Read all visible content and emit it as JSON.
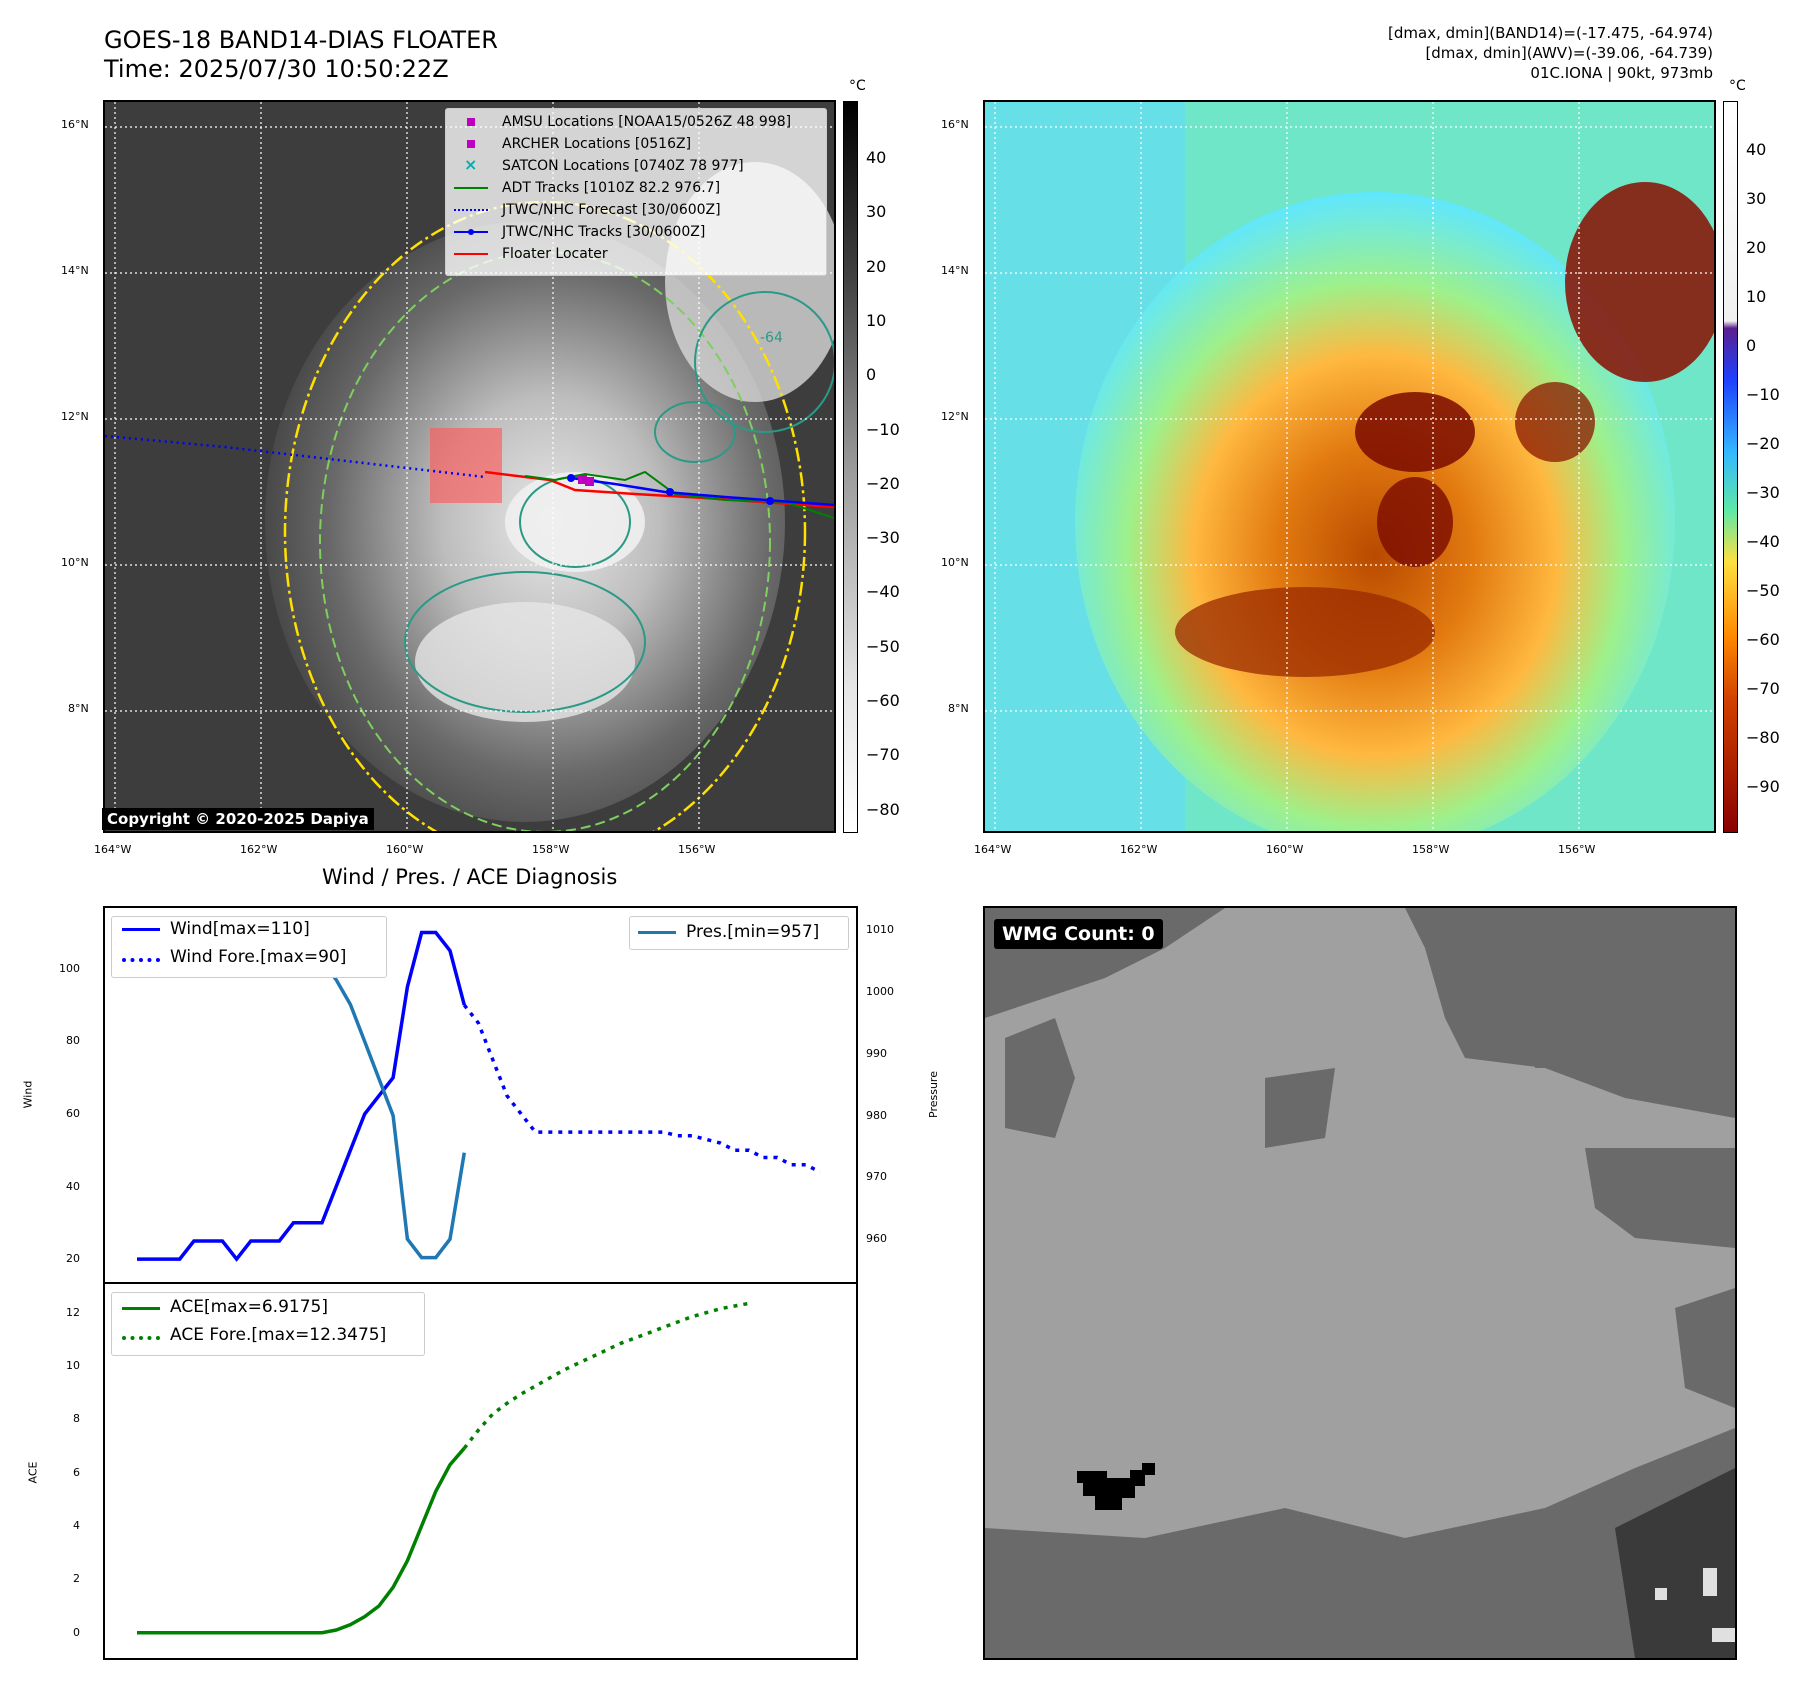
{
  "header": {
    "title_line1": "GOES-18 BAND14-DIAS FLOATER",
    "title_line2": "Time: 2025/07/30 10:50:22Z",
    "info_line1": "[dmax, dmin](BAND14)=(-17.475, -64.974)",
    "info_line2": "[dmax, dmin](AWV)=(-39.06, -64.739)",
    "info_line3": "01C.IONA | 90kt, 973mb"
  },
  "map": {
    "lat_labels": [
      "16°N",
      "14°N",
      "12°N",
      "10°N",
      "8°N"
    ],
    "lon_labels": [
      "164°W",
      "162°W",
      "160°W",
      "158°W",
      "156°W"
    ],
    "contour_label": "-64",
    "copyright": "Copyright © 2020-2025 Dapiya",
    "legend": [
      {
        "label": "AMSU Locations [NOAA15/0526Z 48 998]",
        "color": "#c000c0",
        "kind": "square"
      },
      {
        "label": "ARCHER Locations [0516Z]",
        "color": "#c000c0",
        "kind": "square"
      },
      {
        "label": "SATCON Locations [0740Z 78 977]",
        "color": "#00b0b0",
        "kind": "x"
      },
      {
        "label": "ADT Tracks [1010Z 82.2 976.7]",
        "color": "#008000",
        "kind": "line"
      },
      {
        "label": "JTWC/NHC Forecast [30/0600Z]",
        "color": "#0000ff",
        "kind": "dotted"
      },
      {
        "label": "JTWC/NHC Tracks [30/0600Z]",
        "color": "#0000ff",
        "kind": "linedot"
      },
      {
        "label": "Floater Locater",
        "color": "#ff0000",
        "kind": "line"
      }
    ]
  },
  "colorbar_left": {
    "unit": "°C",
    "ticks": [
      "40",
      "30",
      "20",
      "10",
      "0",
      "−10",
      "−20",
      "−30",
      "−40",
      "−50",
      "−60",
      "−70",
      "−80"
    ]
  },
  "colorbar_right": {
    "unit": "°C",
    "ticks": [
      "40",
      "30",
      "20",
      "10",
      "0",
      "−10",
      "−20",
      "−30",
      "−40",
      "−50",
      "−60",
      "−70",
      "−80",
      "−90"
    ]
  },
  "diagnosis": {
    "title": "Wind / Pres. / ACE Diagnosis",
    "wind_ylabel": "Wind",
    "pres_ylabel": "Pressure",
    "ace_ylabel": "ACE"
  },
  "wmg": {
    "label": "WMG Count: 0"
  },
  "chart_data": [
    {
      "type": "line",
      "title": "Wind / Pres. / ACE Diagnosis",
      "ylabel": "Wind",
      "ylim": [
        17,
        114
      ],
      "yticks": [
        20,
        40,
        60,
        80,
        100
      ],
      "series": [
        {
          "name": "Wind[max=110]",
          "style": "solid",
          "color": "#0000ff",
          "start_index": 0,
          "values": [
            20,
            20,
            20,
            20,
            25,
            25,
            25,
            20,
            25,
            25,
            25,
            30,
            30,
            30,
            40,
            50,
            60,
            65,
            70,
            95,
            110,
            110,
            105,
            90
          ]
        },
        {
          "name": "Wind Fore.[max=90]",
          "style": "dotted",
          "color": "#0000ff",
          "start_index": 23,
          "values": [
            90,
            85,
            75,
            65,
            60,
            55,
            55,
            55,
            55,
            55,
            55,
            55,
            55,
            55,
            55,
            54,
            54,
            53,
            52,
            50,
            50,
            48,
            48,
            46,
            46,
            44
          ]
        }
      ]
    },
    {
      "type": "line",
      "ylabel": "Pressure",
      "ylim": [
        955,
        1012
      ],
      "yticks": [
        960,
        970,
        980,
        990,
        1000,
        1010
      ],
      "series": [
        {
          "name": "Pres.[min=957]",
          "style": "solid",
          "color": "#1f77b4",
          "start_index": 0,
          "values": [
            1010,
            1010,
            1010,
            1010,
            1009,
            1009,
            1008,
            1011,
            1010,
            1010,
            1009,
            1009,
            1008,
            1005,
            1002,
            998,
            992,
            986,
            980,
            960,
            957,
            957,
            960,
            974
          ]
        }
      ]
    },
    {
      "type": "line",
      "ylabel": "ACE",
      "ylim": [
        -0.5,
        12.7
      ],
      "yticks": [
        0,
        2,
        4,
        6,
        8,
        10,
        12
      ],
      "series": [
        {
          "name": "ACE[max=6.9175]",
          "style": "solid",
          "color": "#008000",
          "start_index": 0,
          "values": [
            0,
            0,
            0,
            0,
            0,
            0,
            0,
            0,
            0,
            0,
            0,
            0,
            0,
            0,
            0.1,
            0.3,
            0.6,
            1.0,
            1.7,
            2.7,
            4.0,
            5.3,
            6.3,
            6.9175
          ]
        },
        {
          "name": "ACE Fore.[max=12.3475]",
          "style": "dotted",
          "color": "#008000",
          "start_index": 23,
          "values": [
            6.9175,
            7.6,
            8.2,
            8.6,
            8.95,
            9.25,
            9.55,
            9.85,
            10.1,
            10.35,
            10.6,
            10.85,
            11.05,
            11.25,
            11.45,
            11.65,
            11.85,
            12.0,
            12.15,
            12.25,
            12.3475
          ]
        }
      ]
    }
  ]
}
